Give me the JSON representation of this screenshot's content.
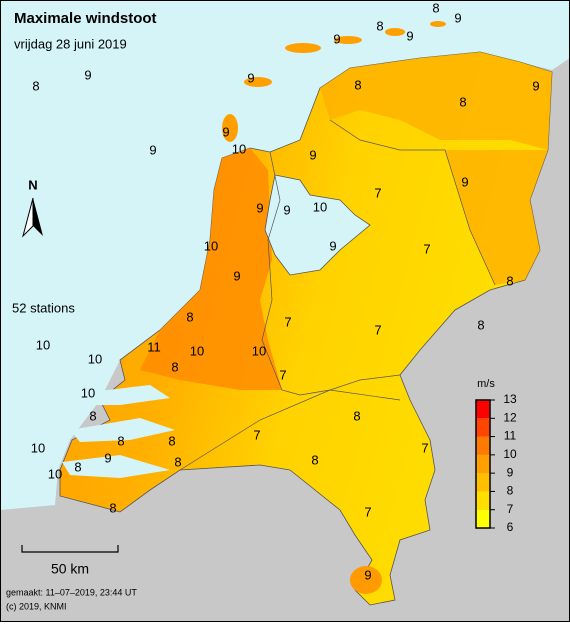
{
  "title": "Maximale windstoot",
  "subtitle": "vrijdag 28 juni 2019",
  "station_count": "52 stations",
  "north": "N",
  "scale_bar": "50 km",
  "footer": [
    "gemaakt: 11–07–2019, 23:44 UT",
    "(c) 2019, KNMI"
  ],
  "legend": {
    "unit": "m/s",
    "ticks": [
      6,
      7,
      8,
      9,
      10,
      11,
      12,
      13
    ],
    "colors": [
      "#ffff00",
      "#ffdf00",
      "#ffbf00",
      "#ffa000",
      "#ff7a00",
      "#ff4500",
      "#ff0000"
    ]
  },
  "stations": [
    8,
    9,
    8,
    9,
    9,
    9,
    8,
    9,
    8,
    9,
    8,
    9,
    10,
    9,
    9,
    7,
    9,
    9,
    9,
    10,
    10,
    9,
    7,
    9,
    8,
    8,
    7,
    7,
    8,
    10,
    10,
    11,
    10,
    10,
    8,
    7,
    10,
    8,
    8,
    8,
    7,
    10,
    9,
    8,
    7,
    8,
    10,
    8,
    8,
    7,
    9,
    8
  ]
}
